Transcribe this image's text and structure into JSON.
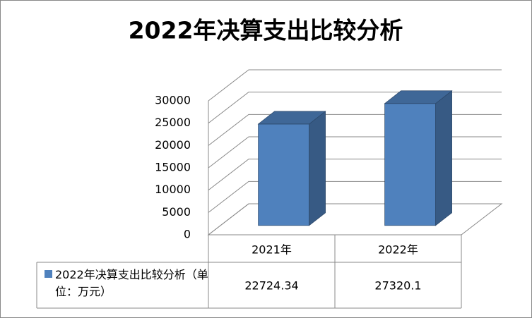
{
  "chart_data": {
    "type": "bar3d",
    "title": "2022年决算支出比较分析",
    "categories": [
      "2021年",
      "2022年"
    ],
    "series": [
      {
        "name": "2022年决算支出比较分析（单位：万元）",
        "color": "#4f81bd",
        "values": [
          22724.34,
          27320.1
        ]
      }
    ],
    "ylim": [
      0,
      30000
    ],
    "yticks": [
      0,
      5000,
      10000,
      15000,
      20000,
      25000,
      30000
    ],
    "grid": true,
    "legend": "data-table"
  }
}
